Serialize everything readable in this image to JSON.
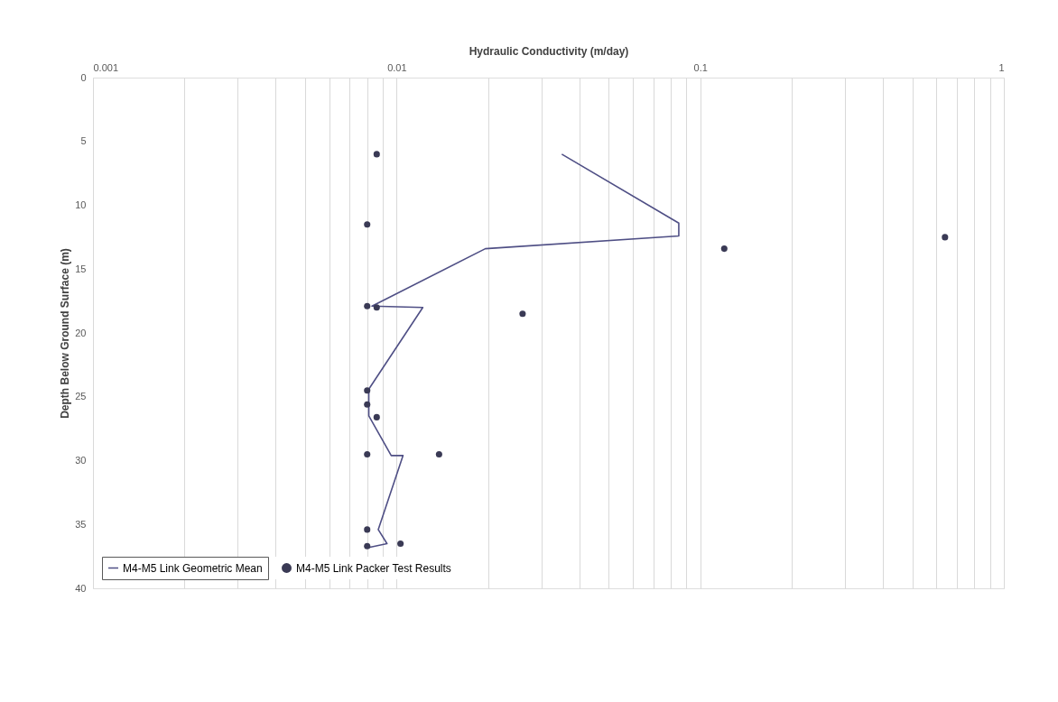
{
  "chart_data": {
    "type": "scatter",
    "xlabel": "Hydraulic Conductivity (m/day)",
    "ylabel": "Depth Below Ground Surface (m)",
    "log": "x",
    "xlim": [
      0.001,
      1
    ],
    "xticks": [
      {
        "value": 0.001,
        "label": "0.001"
      },
      {
        "value": 0.002,
        "label": null
      },
      {
        "value": 0.003,
        "label": null
      },
      {
        "value": 0.004,
        "label": null
      },
      {
        "value": 0.005,
        "label": null
      },
      {
        "value": 0.006,
        "label": null
      },
      {
        "value": 0.007,
        "label": null
      },
      {
        "value": 0.008,
        "label": null
      },
      {
        "value": 0.009,
        "label": null
      },
      {
        "value": 0.01,
        "label": "0.01"
      },
      {
        "value": 0.02,
        "label": null
      },
      {
        "value": 0.03,
        "label": null
      },
      {
        "value": 0.04,
        "label": null
      },
      {
        "value": 0.05,
        "label": null
      },
      {
        "value": 0.06,
        "label": null
      },
      {
        "value": 0.07,
        "label": null
      },
      {
        "value": 0.08,
        "label": null
      },
      {
        "value": 0.09,
        "label": null
      },
      {
        "value": 0.1,
        "label": "0.1"
      },
      {
        "value": 0.2,
        "label": null
      },
      {
        "value": 0.3,
        "label": null
      },
      {
        "value": 0.4,
        "label": null
      },
      {
        "value": 0.5,
        "label": null
      },
      {
        "value": 0.6,
        "label": null
      },
      {
        "value": 0.7,
        "label": null
      },
      {
        "value": 0.8,
        "label": null
      },
      {
        "value": 0.9,
        "label": null
      },
      {
        "value": 1,
        "label": "1"
      }
    ],
    "ylim": [
      40,
      0
    ],
    "yticks": [
      0,
      5,
      10,
      15,
      20,
      25,
      30,
      35,
      40
    ],
    "grid": "x",
    "legend": "bottom left",
    "series": [
      {
        "name": "M4-M5 Link Geometric Mean",
        "type": "line",
        "color": "#4f4f85",
        "marker": "none",
        "line_style": "solid",
        "x": [
          0.035,
          0.085,
          0.085,
          0.0196,
          0.0083,
          0.0122,
          0.0081,
          0.0081,
          0.0096,
          0.0105,
          0.0087,
          0.0093,
          0.0081
        ],
        "values": [
          6.0,
          11.4,
          12.4,
          13.4,
          17.9,
          18.0,
          24.4,
          26.5,
          29.6,
          29.6,
          35.4,
          36.5,
          36.8
        ]
      },
      {
        "name": "M4-M5 Link Packer Test Results",
        "color": "#3a3a55",
        "marker": "circle",
        "x": [
          0.0086,
          0.008,
          0.64,
          0.12,
          0.008,
          0.0086,
          0.026,
          0.008,
          0.008,
          0.0086,
          0.008,
          0.0138,
          0.008,
          0.0103,
          0.008
        ],
        "values": [
          6.0,
          11.5,
          12.5,
          13.4,
          17.9,
          18.0,
          18.5,
          24.5,
          25.6,
          26.6,
          29.5,
          29.5,
          35.4,
          36.5,
          36.7
        ]
      }
    ]
  }
}
